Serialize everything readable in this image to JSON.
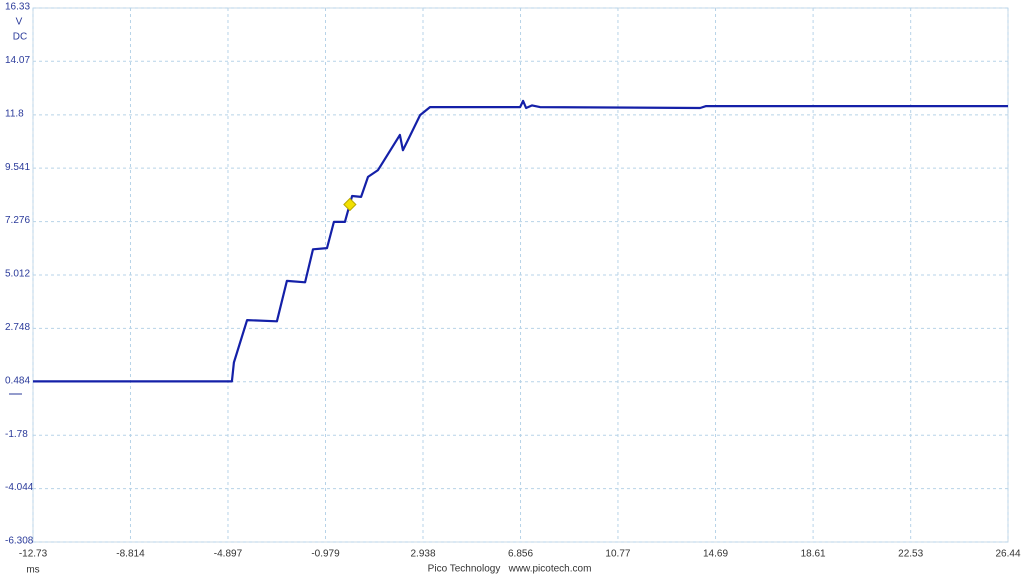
{
  "chart_data": {
    "type": "line",
    "y_unit": "V",
    "coupling": "DC",
    "x_unit": "ms",
    "footer": [
      "Pico Technology",
      "www.picotech.com"
    ],
    "xlim": [
      -12.73,
      26.44
    ],
    "xticks": [
      -12.73,
      -8.814,
      -4.897,
      -0.979,
      2.938,
      6.856,
      10.77,
      14.69,
      18.61,
      22.53,
      26.44
    ],
    "ylim": [
      -6.308,
      16.33
    ],
    "yticks": [
      -6.308,
      -4.044,
      -1.78,
      0.484,
      2.748,
      5.012,
      7.276,
      9.541,
      11.8,
      14.07,
      16.33
    ],
    "grid": true,
    "series": [
      {
        "color": "#1420a8",
        "x": [
          -12.73,
          -4.74,
          -4.66,
          -4.13,
          -2.93,
          -2.53,
          -1.8,
          -1.48,
          -0.92,
          -0.64,
          -0.2,
          0.09,
          0.45,
          0.73,
          1.13,
          2.01,
          2.13,
          2.33,
          2.82,
          3.22,
          6.84,
          6.96,
          7.08,
          7.32,
          7.64,
          14.07,
          14.31,
          26.44
        ],
        "values": [
          0.5,
          0.5,
          1.3,
          3.1,
          3.05,
          4.76,
          4.7,
          6.1,
          6.15,
          7.26,
          7.26,
          8.36,
          8.32,
          9.17,
          9.46,
          10.95,
          10.3,
          10.73,
          11.79,
          12.13,
          12.13,
          12.39,
          12.09,
          12.2,
          12.13,
          12.09,
          12.17,
          12.17
        ]
      }
    ],
    "trigger": {
      "x": 0,
      "y": 8,
      "color": "#f2e000"
    }
  }
}
